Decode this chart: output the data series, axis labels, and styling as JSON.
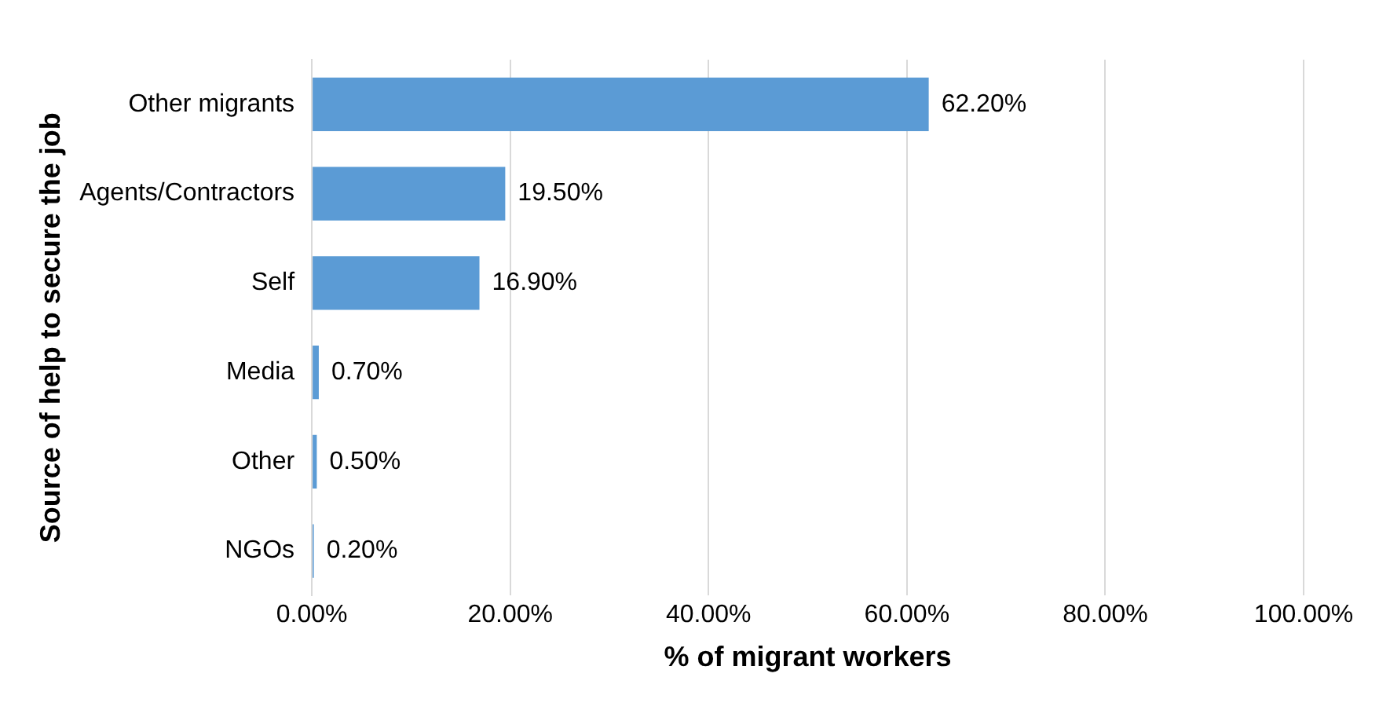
{
  "chart_data": {
    "type": "bar",
    "orientation": "horizontal",
    "categories": [
      "Other migrants",
      "Agents/Contractors",
      "Self",
      "Media",
      "Other",
      "NGOs"
    ],
    "values": [
      62.2,
      19.5,
      16.9,
      0.7,
      0.5,
      0.2
    ],
    "color": "#5b9bd5",
    "value_labels": [
      "62.20%",
      "19.50%",
      "16.90%",
      "0.70%",
      "0.50%",
      "0.20%"
    ],
    "xlim": [
      0,
      100
    ],
    "xticks": [
      {
        "value": 0,
        "label": "0.00%"
      },
      {
        "value": 20,
        "label": "20.00%"
      },
      {
        "value": 40,
        "label": "40.00%"
      },
      {
        "value": 60,
        "label": "60.00%"
      },
      {
        "value": 80,
        "label": "80.00%"
      },
      {
        "value": 100,
        "label": "100.00%"
      }
    ],
    "xlabel": "% of migrant workers",
    "ylabel": "Source of help to secure the job",
    "grid": "x",
    "legend": false
  }
}
